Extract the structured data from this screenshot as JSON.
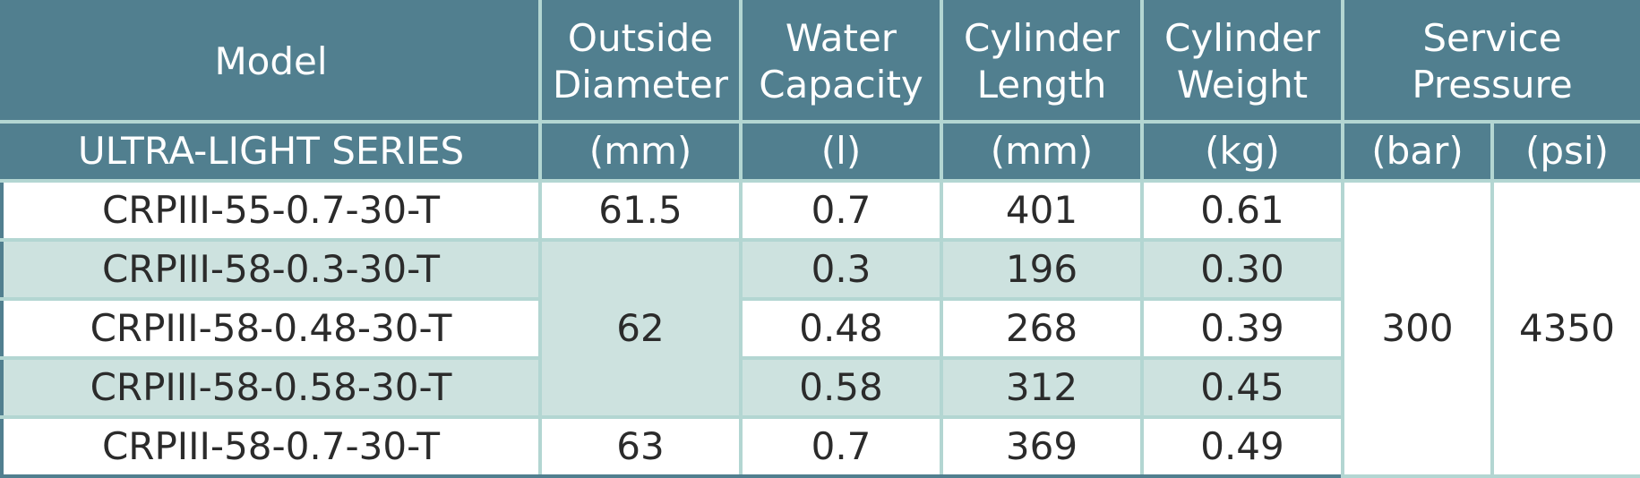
{
  "header": {
    "model": "Model",
    "outside_diameter": [
      "Outside",
      "Diameter"
    ],
    "water_capacity": [
      "Water",
      "Capacity"
    ],
    "cylinder_length": [
      "Cylinder",
      "Length"
    ],
    "cylinder_weight": [
      "Cylinder",
      "Weight"
    ],
    "service_pressure": [
      "Service",
      "Pressure"
    ]
  },
  "subheader": {
    "series": "ULTRA-LIGHT SERIES",
    "od_unit": "(mm)",
    "wc_unit": "(l)",
    "len_unit": "(mm)",
    "wt_unit": "(kg)",
    "bar_unit": "(bar)",
    "psi_unit": "(psi)"
  },
  "rows": [
    {
      "model": "CRPIII-55-0.7-30-T",
      "capacity": "0.7",
      "length": "401",
      "weight": "0.61"
    },
    {
      "model": "CRPIII-58-0.3-30-T",
      "capacity": "0.3",
      "length": "196",
      "weight": "0.30"
    },
    {
      "model": "CRPIII-58-0.48-30-T",
      "capacity": "0.48",
      "length": "268",
      "weight": "0.39"
    },
    {
      "model": "CRPIII-58-0.58-30-T",
      "capacity": "0.58",
      "length": "312",
      "weight": "0.45"
    },
    {
      "model": "CRPIII-58-0.7-30-T",
      "capacity": "0.7",
      "length": "369",
      "weight": "0.49"
    }
  ],
  "diameters": {
    "first": "61.5",
    "middle": "62",
    "last": "63"
  },
  "pressure": {
    "bar": "300",
    "psi": "4350"
  }
}
